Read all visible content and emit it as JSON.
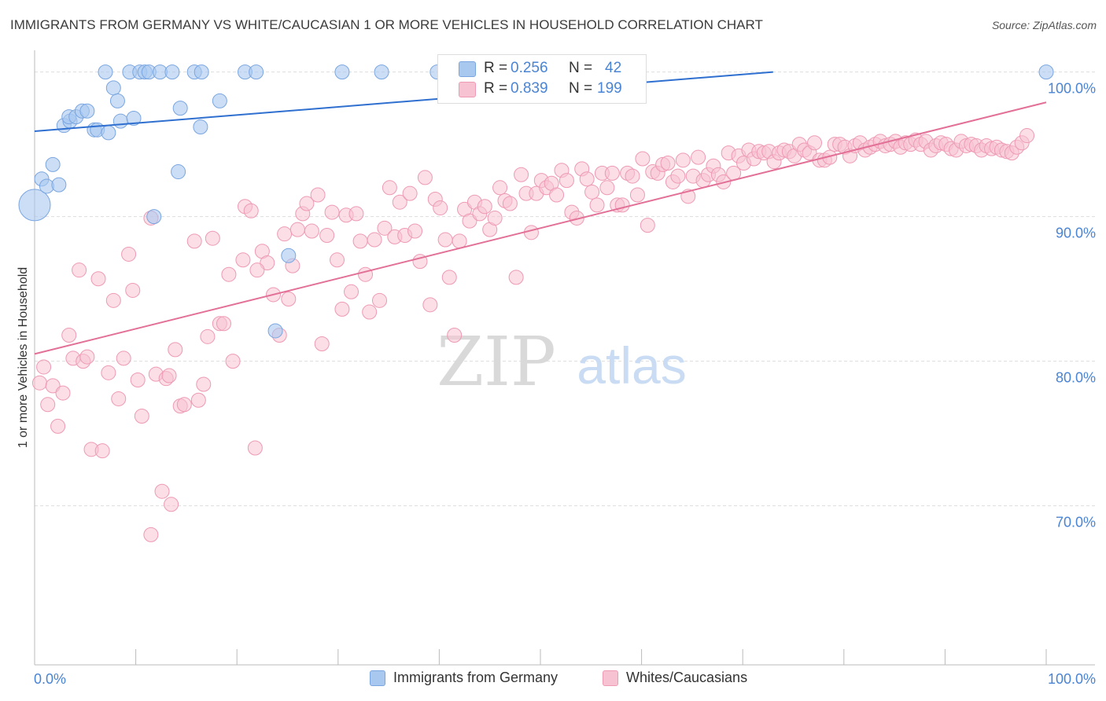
{
  "title": "IMMIGRANTS FROM GERMANY VS WHITE/CAUCASIAN 1 OR MORE VEHICLES IN HOUSEHOLD CORRELATION CHART",
  "source": "Source: ZipAtlas.com",
  "watermark": {
    "zip": "ZIP",
    "atlas": "atlas"
  },
  "legend_top": {
    "rows": [
      {
        "r_label": "R =",
        "r_value": "0.256",
        "n_label": "N =",
        "n_value": "42"
      },
      {
        "r_label": "R =",
        "r_value": "0.839",
        "n_label": "N =",
        "n_value": "199"
      }
    ]
  },
  "legend_bottom": [
    "Immigrants from Germany",
    "Whites/Caucasians"
  ],
  "colors": {
    "blue_fill": "#a9c8f0",
    "blue_stroke": "#7aa6e0",
    "blue_line": "#2f6fcf",
    "pink_fill": "#f7c3d2",
    "pink_stroke": "#ee9ab4",
    "pink_line": "#e27097",
    "tick_label": "#4a84d4",
    "grid": "#dddddd"
  },
  "chart_data": {
    "type": "scatter",
    "title": "IMMIGRANTS FROM GERMANY VS WHITE/CAUCASIAN 1 OR MORE VEHICLES IN HOUSEHOLD CORRELATION CHART",
    "xlabel": "",
    "ylabel": "1 or more Vehicles in Household",
    "xlim": [
      0,
      100
    ],
    "ylim": [
      59,
      101.5
    ],
    "x_tick_labels": [
      "0.0%",
      "100.0%"
    ],
    "y_ticks": [
      70,
      80,
      90,
      100
    ],
    "y_tick_labels": [
      "70.0%",
      "80.0%",
      "90.0%",
      "100.0%"
    ],
    "grid": true,
    "legend_position": "top-center",
    "series": [
      {
        "name": "Immigrants from Germany",
        "trend": {
          "x": [
            0,
            73
          ],
          "y": [
            95.9,
            100.0
          ]
        },
        "points": [
          [
            0.0,
            90.8,
            1
          ],
          [
            0.7,
            92.6,
            0
          ],
          [
            1.2,
            92.1,
            0
          ],
          [
            1.8,
            93.6,
            0
          ],
          [
            2.4,
            92.2,
            0
          ],
          [
            2.9,
            96.3,
            0
          ],
          [
            3.5,
            96.6,
            0
          ],
          [
            3.4,
            96.9,
            0
          ],
          [
            4.1,
            96.9,
            0
          ],
          [
            4.7,
            97.3,
            0
          ],
          [
            5.2,
            97.3,
            0
          ],
          [
            5.9,
            96.0,
            0
          ],
          [
            6.2,
            96.0,
            0
          ],
          [
            7.3,
            95.8,
            0
          ],
          [
            7.0,
            100.0,
            0
          ],
          [
            7.8,
            98.9,
            0
          ],
          [
            8.2,
            98.0,
            0
          ],
          [
            8.5,
            96.6,
            0
          ],
          [
            9.4,
            100.0,
            0
          ],
          [
            9.8,
            96.8,
            0
          ],
          [
            10.4,
            100.0,
            0
          ],
          [
            10.9,
            100.0,
            0
          ],
          [
            11.3,
            100.0,
            0
          ],
          [
            12.4,
            100.0,
            0
          ],
          [
            13.6,
            100.0,
            0
          ],
          [
            14.2,
            93.1,
            0
          ],
          [
            14.4,
            97.5,
            0
          ],
          [
            15.8,
            100.0,
            0
          ],
          [
            16.5,
            100.0,
            0
          ],
          [
            16.4,
            96.2,
            0
          ],
          [
            18.3,
            98.0,
            0
          ],
          [
            20.8,
            100.0,
            0
          ],
          [
            21.9,
            100.0,
            0
          ],
          [
            25.1,
            87.3,
            0
          ],
          [
            23.8,
            82.1,
            0
          ],
          [
            30.4,
            100.0,
            0
          ],
          [
            34.3,
            100.0,
            0
          ],
          [
            39.8,
            100.0,
            0
          ],
          [
            11.8,
            90.0,
            0
          ],
          [
            100.0,
            100.0,
            0
          ],
          [
            49.0,
            100.0,
            0
          ],
          [
            56.9,
            100.0,
            0
          ]
        ]
      },
      {
        "name": "Whites/Caucasians",
        "trend": {
          "x": [
            0,
            100
          ],
          "y": [
            80.5,
            97.9
          ]
        },
        "points": [
          [
            0.5,
            78.5
          ],
          [
            0.9,
            79.6
          ],
          [
            1.3,
            77.0
          ],
          [
            1.8,
            78.3
          ],
          [
            2.3,
            75.5
          ],
          [
            2.8,
            77.8
          ],
          [
            3.4,
            81.8
          ],
          [
            3.8,
            80.2
          ],
          [
            4.4,
            86.3
          ],
          [
            4.8,
            80.0
          ],
          [
            5.2,
            80.3
          ],
          [
            5.6,
            73.9
          ],
          [
            6.3,
            85.7
          ],
          [
            6.7,
            73.8
          ],
          [
            7.3,
            79.2
          ],
          [
            7.8,
            84.2
          ],
          [
            8.3,
            77.4
          ],
          [
            8.8,
            80.2
          ],
          [
            9.3,
            87.4
          ],
          [
            9.7,
            84.9
          ],
          [
            10.2,
            78.7
          ],
          [
            10.6,
            76.2
          ],
          [
            11.5,
            89.9
          ],
          [
            12.0,
            79.1
          ],
          [
            12.6,
            71.0
          ],
          [
            13.0,
            78.8
          ],
          [
            13.5,
            70.1
          ],
          [
            13.9,
            80.8
          ],
          [
            14.4,
            76.9
          ],
          [
            14.8,
            77.0
          ],
          [
            15.8,
            88.3
          ],
          [
            16.2,
            77.3
          ],
          [
            16.7,
            78.4
          ],
          [
            17.1,
            81.7
          ],
          [
            17.6,
            88.5
          ],
          [
            18.3,
            82.6
          ],
          [
            18.7,
            82.6
          ],
          [
            19.2,
            86.0
          ],
          [
            19.6,
            80.0
          ],
          [
            20.6,
            87.0
          ],
          [
            20.8,
            90.7
          ],
          [
            21.4,
            90.4
          ],
          [
            21.8,
            74.0
          ],
          [
            22.5,
            87.6
          ],
          [
            23.0,
            86.8
          ],
          [
            23.6,
            84.6
          ],
          [
            24.2,
            81.8
          ],
          [
            24.7,
            88.8
          ],
          [
            25.1,
            84.3
          ],
          [
            25.5,
            86.6
          ],
          [
            26.0,
            89.1
          ],
          [
            26.5,
            90.2
          ],
          [
            26.9,
            90.9
          ],
          [
            27.4,
            89.0
          ],
          [
            28.0,
            91.5
          ],
          [
            28.4,
            81.2
          ],
          [
            28.9,
            88.7
          ],
          [
            29.4,
            90.3
          ],
          [
            29.9,
            87.0
          ],
          [
            30.4,
            83.6
          ],
          [
            30.8,
            90.1
          ],
          [
            31.3,
            84.8
          ],
          [
            31.8,
            90.2
          ],
          [
            32.2,
            88.3
          ],
          [
            32.7,
            86.0
          ],
          [
            33.1,
            83.4
          ],
          [
            33.6,
            88.4
          ],
          [
            34.1,
            84.2
          ],
          [
            34.6,
            89.2
          ],
          [
            35.1,
            92.0
          ],
          [
            35.6,
            88.6
          ],
          [
            36.1,
            91.0
          ],
          [
            36.6,
            88.7
          ],
          [
            37.1,
            91.6
          ],
          [
            37.6,
            89.0
          ],
          [
            38.1,
            86.9
          ],
          [
            38.6,
            92.7
          ],
          [
            39.1,
            83.9
          ],
          [
            39.6,
            91.2
          ],
          [
            40.1,
            90.6
          ],
          [
            40.6,
            88.4
          ],
          [
            41.0,
            85.8
          ],
          [
            41.5,
            81.8
          ],
          [
            42.0,
            88.3
          ],
          [
            42.5,
            90.5
          ],
          [
            43.0,
            89.7
          ],
          [
            43.5,
            91.0
          ],
          [
            44.0,
            90.2
          ],
          [
            44.5,
            90.7
          ],
          [
            45.0,
            89.1
          ],
          [
            45.5,
            89.9
          ],
          [
            46.0,
            92.0
          ],
          [
            46.5,
            91.1
          ],
          [
            47.0,
            90.9
          ],
          [
            47.6,
            85.8
          ],
          [
            48.1,
            92.9
          ],
          [
            48.6,
            91.6
          ],
          [
            49.1,
            88.9
          ],
          [
            49.6,
            91.6
          ],
          [
            50.1,
            92.5
          ],
          [
            50.6,
            92.0
          ],
          [
            51.1,
            92.3
          ],
          [
            51.6,
            91.5
          ],
          [
            52.1,
            93.2
          ],
          [
            52.6,
            92.5
          ],
          [
            53.1,
            90.3
          ],
          [
            53.6,
            89.9
          ],
          [
            54.1,
            93.3
          ],
          [
            54.6,
            92.6
          ],
          [
            55.1,
            91.7
          ],
          [
            55.6,
            90.8
          ],
          [
            56.1,
            93.0
          ],
          [
            56.6,
            92.0
          ],
          [
            57.1,
            93.0
          ],
          [
            57.6,
            90.8
          ],
          [
            58.1,
            90.8
          ],
          [
            58.6,
            93.0
          ],
          [
            59.1,
            92.8
          ],
          [
            59.6,
            91.5
          ],
          [
            60.1,
            94.0
          ],
          [
            60.6,
            89.4
          ],
          [
            61.1,
            93.1
          ],
          [
            61.6,
            93.0
          ],
          [
            62.1,
            93.6
          ],
          [
            62.6,
            93.7
          ],
          [
            63.1,
            92.4
          ],
          [
            63.6,
            92.8
          ],
          [
            64.1,
            93.9
          ],
          [
            64.6,
            91.4
          ],
          [
            65.1,
            92.8
          ],
          [
            65.6,
            94.1
          ],
          [
            66.1,
            92.5
          ],
          [
            66.6,
            92.9
          ],
          [
            67.1,
            93.5
          ],
          [
            67.6,
            92.9
          ],
          [
            68.1,
            92.4
          ],
          [
            68.6,
            94.4
          ],
          [
            69.1,
            93.0
          ],
          [
            69.6,
            94.2
          ],
          [
            70.1,
            93.7
          ],
          [
            70.6,
            94.6
          ],
          [
            71.1,
            94.0
          ],
          [
            71.6,
            94.5
          ],
          [
            72.1,
            94.4
          ],
          [
            72.6,
            94.5
          ],
          [
            73.1,
            93.8
          ],
          [
            73.6,
            94.4
          ],
          [
            74.1,
            94.6
          ],
          [
            74.6,
            94.5
          ],
          [
            75.1,
            94.2
          ],
          [
            75.6,
            95.0
          ],
          [
            76.1,
            94.6
          ],
          [
            76.6,
            94.4
          ],
          [
            77.1,
            95.1
          ],
          [
            77.6,
            93.9
          ],
          [
            78.1,
            93.9
          ],
          [
            78.6,
            94.1
          ],
          [
            79.1,
            95.0
          ],
          [
            79.6,
            95.0
          ],
          [
            80.1,
            94.8
          ],
          [
            80.6,
            94.2
          ],
          [
            81.1,
            94.9
          ],
          [
            81.6,
            95.1
          ],
          [
            82.1,
            94.6
          ],
          [
            82.6,
            94.8
          ],
          [
            83.1,
            95.0
          ],
          [
            83.6,
            95.2
          ],
          [
            84.1,
            94.9
          ],
          [
            84.6,
            95.0
          ],
          [
            85.1,
            95.2
          ],
          [
            85.6,
            94.8
          ],
          [
            86.1,
            95.1
          ],
          [
            86.6,
            95.0
          ],
          [
            87.1,
            95.3
          ],
          [
            87.6,
            95.0
          ],
          [
            88.1,
            95.2
          ],
          [
            88.6,
            94.6
          ],
          [
            89.1,
            94.9
          ],
          [
            89.6,
            95.1
          ],
          [
            90.1,
            95.0
          ],
          [
            90.6,
            94.7
          ],
          [
            91.1,
            94.6
          ],
          [
            91.6,
            95.2
          ],
          [
            92.1,
            94.9
          ],
          [
            92.6,
            95.0
          ],
          [
            93.1,
            94.9
          ],
          [
            93.6,
            94.6
          ],
          [
            94.1,
            94.9
          ],
          [
            94.6,
            94.7
          ],
          [
            95.1,
            94.8
          ],
          [
            95.6,
            94.6
          ],
          [
            96.1,
            94.5
          ],
          [
            96.6,
            94.4
          ],
          [
            97.1,
            94.8
          ],
          [
            97.6,
            95.1
          ],
          [
            98.1,
            95.6
          ],
          [
            11.5,
            68.0
          ],
          [
            13.3,
            79.0
          ],
          [
            22.0,
            86.3
          ]
        ]
      }
    ]
  }
}
